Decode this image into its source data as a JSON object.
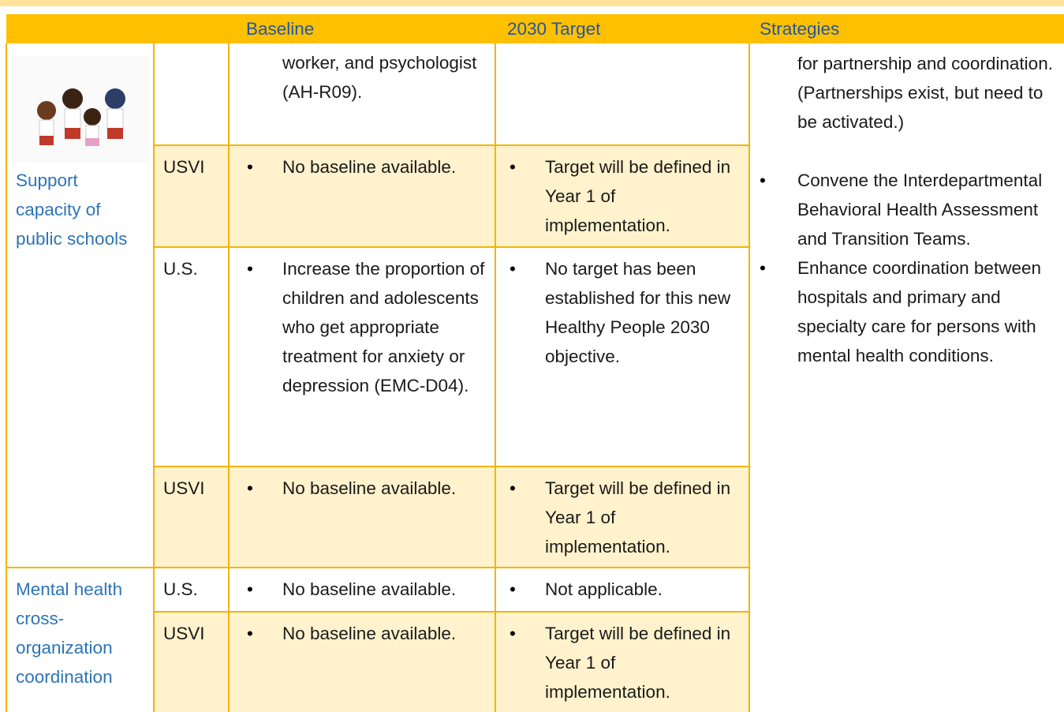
{
  "header": {
    "columns": [
      "Baseline",
      "2030 Target",
      "Strategies"
    ]
  },
  "topics": [
    {
      "label": "Support capacity of public schools"
    },
    {
      "label": "Mental health cross-organization coordination"
    }
  ],
  "rows": [
    {
      "baseline": "worker, and psychologist (AH-R09)."
    },
    {
      "region": "USVI",
      "baseline": "No baseline available.",
      "target": "Target will be defined in Year 1 of implementation."
    },
    {
      "region": "U.S.",
      "baseline": "Increase the proportion of children and adolescents who get appropriate treatment for anxiety or depression (EMC-D04).",
      "target": "No target has been established for this new Healthy People 2030 objective."
    },
    {
      "region": "USVI",
      "baseline": "No baseline available.",
      "target": "Target will be defined in Year 1 of implementation."
    },
    {
      "region": "U.S.",
      "baseline": "No baseline available.",
      "target": "Not applicable."
    },
    {
      "region": "USVI",
      "baseline": "No baseline available.",
      "target": "Target will be defined in Year 1 of implementation."
    }
  ],
  "strategies": {
    "continuation": "for partnership and coordination. (Partnerships exist, but need to be activated.)",
    "items": [
      "Convene the Interdepartmental Behavioral Health Assessment and Transition Teams.",
      "Enhance coordination between hospitals and primary and specialty care for persons with mental health conditions."
    ]
  }
}
